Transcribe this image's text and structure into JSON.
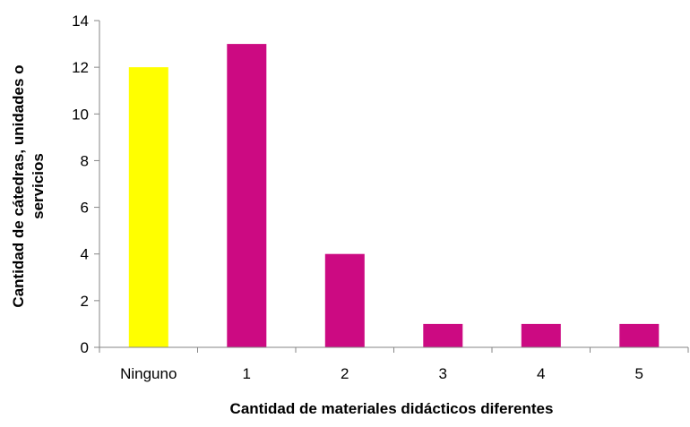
{
  "chart_data": {
    "type": "bar",
    "title": "",
    "categories": [
      "Ninguno",
      "1",
      "2",
      "3",
      "4",
      "5"
    ],
    "values": [
      12,
      13,
      4,
      1,
      1,
      1
    ],
    "colors": [
      "#FFFF00",
      "#CC0A82",
      "#CC0A82",
      "#CC0A82",
      "#CC0A82",
      "#CC0A82"
    ],
    "xlabel": "Cantidad de materiales didácticos diferentes",
    "ylabel_lines": [
      "Cantidad de cátedras, unidades o",
      "servicios"
    ],
    "ylim": [
      0,
      14
    ],
    "yticks": [
      0,
      2,
      4,
      6,
      8,
      10,
      12,
      14
    ],
    "grid": false,
    "legend": "none"
  }
}
